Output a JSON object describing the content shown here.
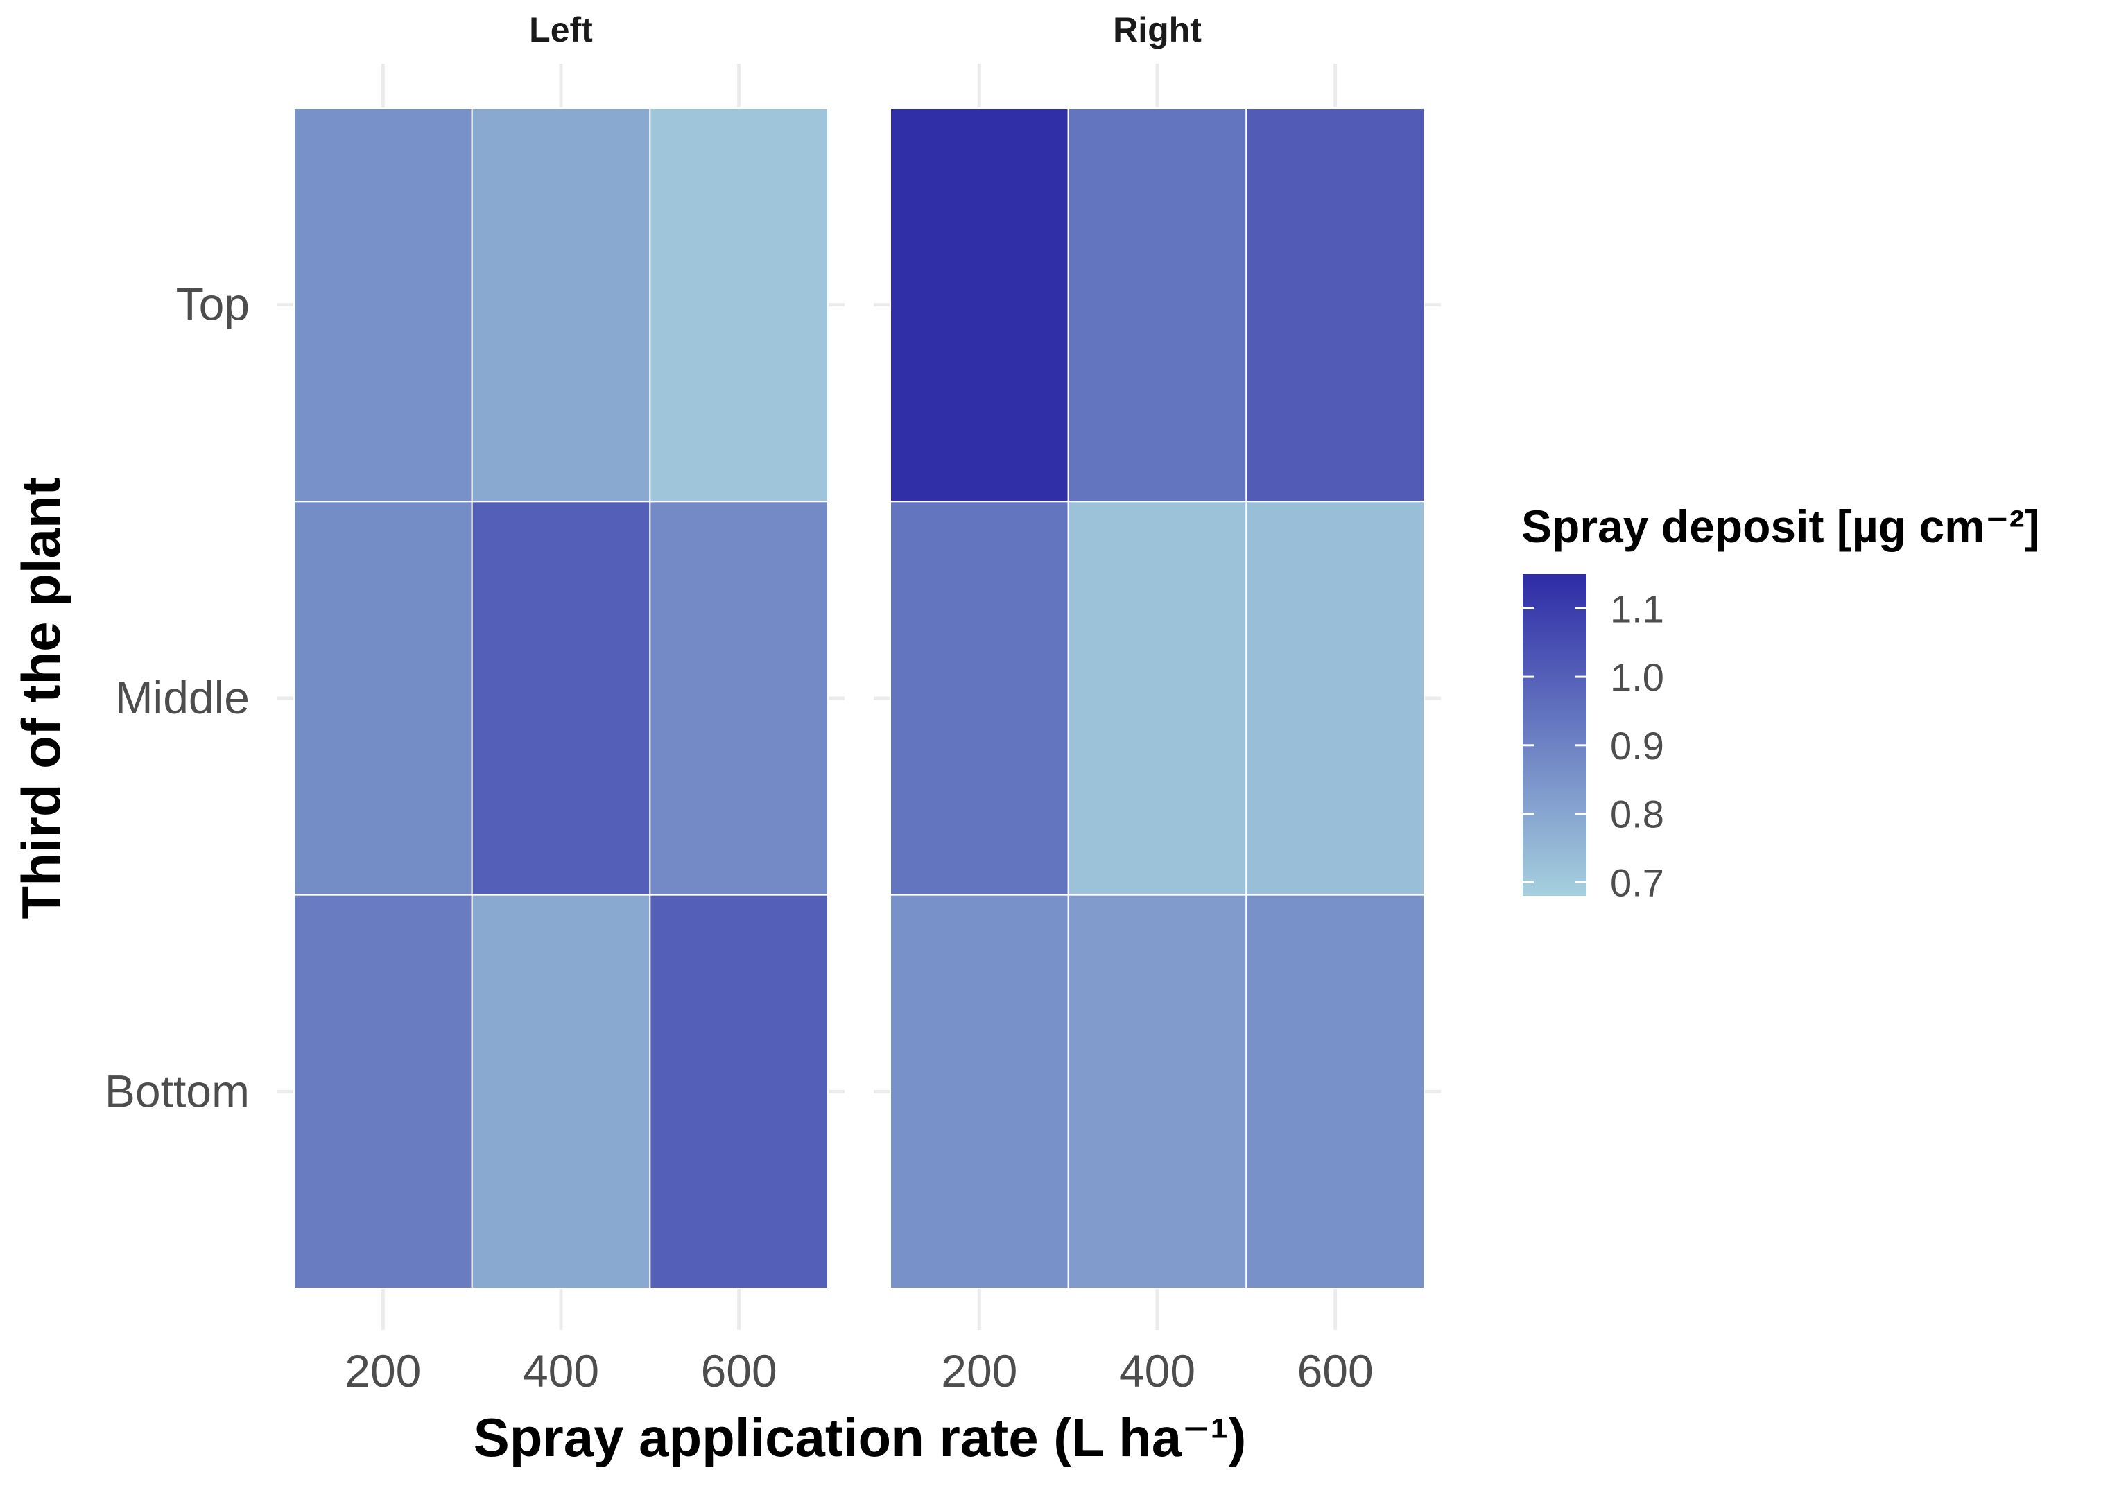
{
  "chart_data": {
    "type": "heatmap",
    "facets": [
      "Left",
      "Right"
    ],
    "x_categories": [
      "200",
      "400",
      "600"
    ],
    "y_categories": [
      "Top",
      "Middle",
      "Bottom"
    ],
    "xlabel": "Spray application rate (L ha⁻¹)",
    "ylabel": "Third of the plant",
    "values": {
      "Left": {
        "Top": [
          0.86,
          0.79,
          0.71
        ],
        "Middle": [
          0.87,
          1.0,
          0.88
        ],
        "Bottom": [
          0.92,
          0.79,
          1.0
        ]
      },
      "Right": {
        "Top": [
          1.14,
          0.94,
          1.01
        ],
        "Middle": [
          0.94,
          0.72,
          0.73
        ],
        "Bottom": [
          0.86,
          0.83,
          0.86
        ]
      }
    },
    "legend": {
      "title": "Spray deposit [µg cm⁻²]",
      "ticks": [
        "1.1",
        "1.0",
        "0.9",
        "0.8",
        "0.7"
      ],
      "tick_values": [
        1.1,
        1.0,
        0.9,
        0.8,
        0.7
      ],
      "range": [
        0.68,
        1.15
      ],
      "low_color": "#a6d0de",
      "high_color": "#2e2ba6",
      "position": "right"
    },
    "grid": true
  }
}
